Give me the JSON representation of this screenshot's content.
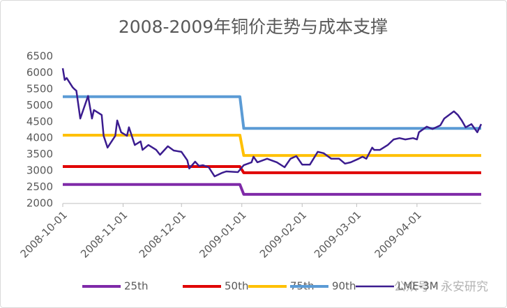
{
  "chart_data": {
    "type": "line",
    "title": "2008-2009年铜价走势与成本支撑",
    "watermark": "公众号 · 永安研究",
    "xlim": [
      "2008-10-01",
      "2009-05-04"
    ],
    "xticks": [
      "2008-10-01",
      "2008-11-01",
      "2008-12-01",
      "2009-01-01",
      "2009-02-01",
      "2009-03-01",
      "2009-04-01"
    ],
    "ylim": [
      2000,
      6500
    ],
    "yticks": [
      2000,
      2500,
      3000,
      3500,
      4000,
      4500,
      5000,
      5500,
      6000,
      6500
    ],
    "grid": false,
    "legend": "bottom",
    "series": [
      {
        "name": "25th",
        "color": "#7f2aa8",
        "x": [
          "2008-10-01",
          "2008-12-31",
          "2009-01-02",
          "2009-05-04"
        ],
        "values": [
          2580,
          2580,
          2280,
          2280
        ]
      },
      {
        "name": "50th",
        "color": "#e00000",
        "x": [
          "2008-10-01",
          "2008-12-31",
          "2009-01-02",
          "2009-05-04"
        ],
        "values": [
          3130,
          3130,
          2940,
          2940
        ]
      },
      {
        "name": "75th",
        "color": "#ffc000",
        "x": [
          "2008-10-01",
          "2008-12-31",
          "2009-01-02",
          "2009-05-04"
        ],
        "values": [
          4090,
          4090,
          3470,
          3470
        ]
      },
      {
        "name": "90th",
        "color": "#5b9bd5",
        "x": [
          "2008-10-01",
          "2008-12-31",
          "2009-01-02",
          "2009-05-04"
        ],
        "values": [
          5270,
          5270,
          4300,
          4300
        ]
      },
      {
        "name": "LME-3M",
        "color": "#3b1c8f",
        "x": [
          "2008-10-01",
          "2008-10-02",
          "2008-10-03",
          "2008-10-06",
          "2008-10-07",
          "2008-10-08",
          "2008-10-10",
          "2008-10-14",
          "2008-10-16",
          "2008-10-17",
          "2008-10-21",
          "2008-10-22",
          "2008-10-24",
          "2008-10-28",
          "2008-10-29",
          "2008-10-31",
          "2008-11-03",
          "2008-11-04",
          "2008-11-07",
          "2008-11-10",
          "2008-11-11",
          "2008-11-14",
          "2008-11-18",
          "2008-11-20",
          "2008-11-24",
          "2008-11-27",
          "2008-12-01",
          "2008-12-04",
          "2008-12-05",
          "2008-12-08",
          "2008-12-10",
          "2008-12-12",
          "2008-12-15",
          "2008-12-18",
          "2008-12-22",
          "2008-12-24",
          "2008-12-30",
          "2009-01-02",
          "2009-01-06",
          "2009-01-07",
          "2009-01-09",
          "2009-01-14",
          "2009-01-19",
          "2009-01-23",
          "2009-01-26",
          "2009-01-29",
          "2009-02-01",
          "2009-02-05",
          "2009-02-09",
          "2009-02-12",
          "2009-02-16",
          "2009-02-20",
          "2009-02-23",
          "2009-02-26",
          "2009-03-02",
          "2009-03-04",
          "2009-03-06",
          "2009-03-09",
          "2009-03-10",
          "2009-03-13",
          "2009-03-17",
          "2009-03-20",
          "2009-03-23",
          "2009-03-26",
          "2009-03-30",
          "2009-04-01",
          "2009-04-02",
          "2009-04-06",
          "2009-04-09",
          "2009-04-13",
          "2009-04-15",
          "2009-04-20",
          "2009-04-22",
          "2009-04-24",
          "2009-04-26",
          "2009-04-29",
          "2009-05-02",
          "2009-05-04"
        ],
        "values": [
          6140,
          5780,
          5840,
          5560,
          5500,
          5450,
          4600,
          5290,
          4600,
          4860,
          4710,
          4070,
          3710,
          4070,
          4540,
          4180,
          4070,
          4330,
          3790,
          3900,
          3640,
          3790,
          3640,
          3490,
          3750,
          3620,
          3580,
          3320,
          3070,
          3280,
          3150,
          3170,
          3110,
          2830,
          2940,
          2980,
          2960,
          3170,
          3260,
          3430,
          3260,
          3370,
          3260,
          3110,
          3370,
          3450,
          3190,
          3190,
          3580,
          3540,
          3370,
          3370,
          3220,
          3260,
          3370,
          3430,
          3370,
          3710,
          3640,
          3640,
          3790,
          3960,
          4000,
          3960,
          4000,
          3960,
          4180,
          4350,
          4280,
          4390,
          4600,
          4820,
          4710,
          4540,
          4330,
          4430,
          4180,
          4430
        ]
      }
    ]
  }
}
